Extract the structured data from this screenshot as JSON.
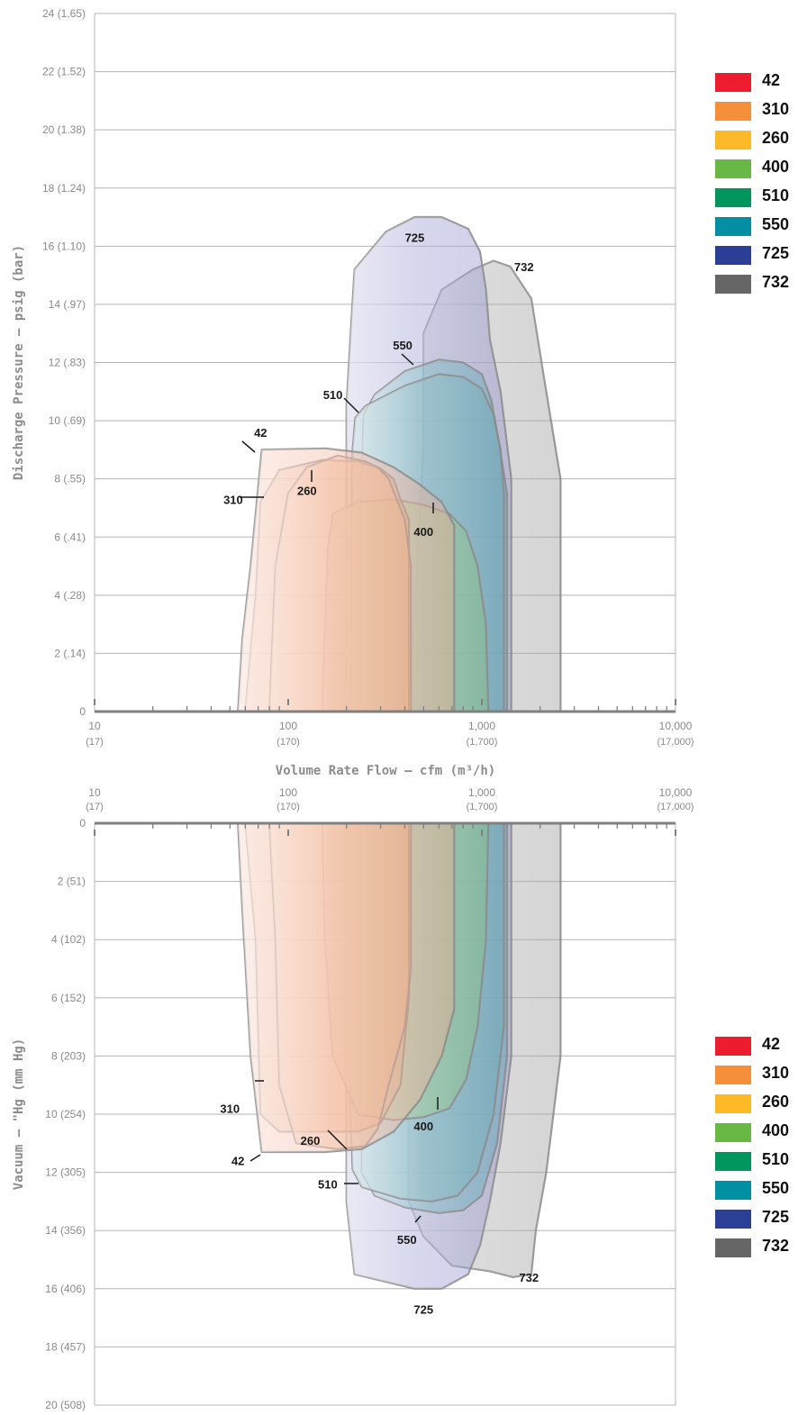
{
  "chart_data": [
    {
      "type": "area",
      "panel": "pressure",
      "ylabel": "Discharge Pressure – psig (bar)",
      "xlabel": "Volume Rate Flow – cfm (m³/h)",
      "xscale": "log",
      "xlim": [
        10,
        10000
      ],
      "ylim": [
        0,
        24
      ],
      "x_ticks": [
        {
          "value": 10,
          "label": "10",
          "sublabel": "(17)"
        },
        {
          "value": 100,
          "label": "100",
          "sublabel": "(170)"
        },
        {
          "value": 1000,
          "label": "1,000",
          "sublabel": "(1,700)"
        },
        {
          "value": 10000,
          "label": "10,000",
          "sublabel": "(17,000)"
        }
      ],
      "y_ticks": [
        {
          "value": 0,
          "label": "0"
        },
        {
          "value": 2,
          "label": "2 (.14)"
        },
        {
          "value": 4,
          "label": "4 (.28)"
        },
        {
          "value": 6,
          "label": "6 (.41)"
        },
        {
          "value": 8,
          "label": "8 (.55)"
        },
        {
          "value": 10,
          "label": "10 (.69)"
        },
        {
          "value": 12,
          "label": "12 (.83)"
        },
        {
          "value": 14,
          "label": "14 (.97)"
        },
        {
          "value": 16,
          "label": "16 (1.10)"
        },
        {
          "value": 18,
          "label": "18 (1.24)"
        },
        {
          "value": 20,
          "label": "20 (1.38)"
        },
        {
          "value": 22,
          "label": "22 (1.52)"
        },
        {
          "value": 24,
          "label": "24 (1.65)"
        }
      ],
      "grid": true,
      "series": [
        {
          "name": "732",
          "color": "#9a9a9a",
          "points": [
            [
              420,
              0
            ],
            [
              500,
              9
            ],
            [
              500,
              13
            ],
            [
              620,
              14.5
            ],
            [
              900,
              15.2
            ],
            [
              1150,
              15.5
            ],
            [
              1400,
              15.3
            ],
            [
              1800,
              14.2
            ],
            [
              2150,
              11
            ],
            [
              2550,
              8
            ],
            [
              2550,
              0
            ]
          ]
        },
        {
          "name": "725",
          "color": "#8d8cce",
          "points": [
            [
              200,
              0
            ],
            [
              200,
              8.8
            ],
            [
              200,
              10.5
            ],
            [
              210,
              13
            ],
            [
              220,
              15.2
            ],
            [
              320,
              16.5
            ],
            [
              450,
              17
            ],
            [
              620,
              17
            ],
            [
              850,
              16.6
            ],
            [
              980,
              15.8
            ],
            [
              1050,
              14.5
            ],
            [
              1100,
              12.8
            ],
            [
              1250,
              11
            ],
            [
              1420,
              8
            ],
            [
              1420,
              0
            ]
          ]
        },
        {
          "name": "550",
          "color": "#4f9fad",
          "points": [
            [
              240,
              0
            ],
            [
              240,
              8
            ],
            [
              245,
              10.2
            ],
            [
              280,
              10.9
            ],
            [
              400,
              11.7
            ],
            [
              600,
              12.1
            ],
            [
              800,
              12
            ],
            [
              1000,
              11.6
            ],
            [
              1120,
              10.7
            ],
            [
              1220,
              9.3
            ],
            [
              1350,
              7.5
            ],
            [
              1350,
              0
            ]
          ]
        },
        {
          "name": "510",
          "color": "#6aa6b1",
          "points": [
            [
              210,
              0
            ],
            [
              215,
              9
            ],
            [
              222,
              10.1
            ],
            [
              250,
              10.5
            ],
            [
              400,
              11.2
            ],
            [
              600,
              11.6
            ],
            [
              800,
              11.5
            ],
            [
              1000,
              11.1
            ],
            [
              1150,
              10.2
            ],
            [
              1250,
              9
            ],
            [
              1300,
              7.5
            ],
            [
              1300,
              0
            ]
          ]
        },
        {
          "name": "400",
          "color": "#8ac07a",
          "points": [
            [
              150,
              0
            ],
            [
              160,
              5.5
            ],
            [
              170,
              6.8
            ],
            [
              230,
              7.2
            ],
            [
              350,
              7.3
            ],
            [
              500,
              7.1
            ],
            [
              680,
              6.8
            ],
            [
              830,
              6.2
            ],
            [
              950,
              5
            ],
            [
              1050,
              3
            ],
            [
              1080,
              0
            ]
          ]
        },
        {
          "name": "310",
          "color": "#e9a176",
          "points": [
            [
              60,
              0
            ],
            [
              68,
              4
            ],
            [
              72,
              7.2
            ],
            [
              90,
              8.3
            ],
            [
              150,
              8.65
            ],
            [
              230,
              8.6
            ],
            [
              300,
              8.35
            ],
            [
              350,
              8
            ],
            [
              380,
              7.3
            ],
            [
              420,
              6.6
            ],
            [
              420,
              0
            ]
          ]
        },
        {
          "name": "260",
          "color": "#eeb07e",
          "points": [
            [
              80,
              0
            ],
            [
              86,
              5
            ],
            [
              100,
              7.5
            ],
            [
              125,
              8.4
            ],
            [
              180,
              8.8
            ],
            [
              250,
              8.6
            ],
            [
              290,
              8.4
            ],
            [
              330,
              8
            ],
            [
              400,
              6.6
            ],
            [
              430,
              5
            ],
            [
              430,
              0
            ]
          ]
        },
        {
          "name": "42",
          "color": "#f3a98f",
          "points": [
            [
              55,
              0
            ],
            [
              58,
              2.5
            ],
            [
              64,
              5
            ],
            [
              73,
              9
            ],
            [
              155,
              9.05
            ],
            [
              240,
              8.9
            ],
            [
              350,
              8.4
            ],
            [
              480,
              7.8
            ],
            [
              620,
              7.2
            ],
            [
              720,
              6.4
            ],
            [
              720,
              0
            ]
          ]
        }
      ],
      "annotations": [
        {
          "text": "42",
          "x": 72,
          "y": 9.6
        },
        {
          "text": "310",
          "x": 52,
          "y": 7.3
        },
        {
          "text": "260",
          "x": 125,
          "y": 7.6
        },
        {
          "text": "400",
          "x": 500,
          "y": 6.2
        },
        {
          "text": "510",
          "x": 170,
          "y": 10.9
        },
        {
          "text": "550",
          "x": 390,
          "y": 12.6
        },
        {
          "text": "725",
          "x": 450,
          "y": 16.3
        },
        {
          "text": "732",
          "x": 1650,
          "y": 15.3
        }
      ]
    },
    {
      "type": "area",
      "panel": "vacuum",
      "ylabel": "Vacuum – \"Hg (mm Hg)",
      "xscale": "log",
      "xlim": [
        10,
        10000
      ],
      "ylim": [
        0,
        20
      ],
      "x_ticks": [
        {
          "value": 10,
          "label": "10",
          "sublabel": "(17)"
        },
        {
          "value": 100,
          "label": "100",
          "sublabel": "(170)"
        },
        {
          "value": 1000,
          "label": "1,000",
          "sublabel": "(1,700)"
        },
        {
          "value": 10000,
          "label": "10,000",
          "sublabel": "(17,000)"
        }
      ],
      "y_ticks": [
        {
          "value": 0,
          "label": "0"
        },
        {
          "value": 2,
          "label": "2 (51)"
        },
        {
          "value": 4,
          "label": "4 (102)"
        },
        {
          "value": 6,
          "label": "6 (152)"
        },
        {
          "value": 8,
          "label": "8 (203)"
        },
        {
          "value": 10,
          "label": "10 (254)"
        },
        {
          "value": 12,
          "label": "12 (305)"
        },
        {
          "value": 14,
          "label": "14 (356)"
        },
        {
          "value": 16,
          "label": "16 (406)"
        },
        {
          "value": 18,
          "label": "18 (457)"
        },
        {
          "value": 20,
          "label": "20 (508)"
        }
      ],
      "grid": true,
      "series": [
        {
          "name": "732",
          "color": "#9a9a9a",
          "points": [
            [
              420,
              0
            ],
            [
              2550,
              0
            ],
            [
              2550,
              8
            ],
            [
              2150,
              12
            ],
            [
              1900,
              14
            ],
            [
              1800,
              15.5
            ],
            [
              1450,
              15.6
            ],
            [
              1100,
              15.4
            ],
            [
              700,
              15.2
            ],
            [
              500,
              14.2
            ],
            [
              420,
              13
            ]
          ]
        },
        {
          "name": "725",
          "color": "#8d8cce",
          "points": [
            [
              200,
              0
            ],
            [
              1420,
              0
            ],
            [
              1420,
              8
            ],
            [
              1250,
              11
            ],
            [
              1100,
              13
            ],
            [
              980,
              14.5
            ],
            [
              850,
              15.5
            ],
            [
              620,
              16
            ],
            [
              450,
              16
            ],
            [
              220,
              15.5
            ],
            [
              200,
              13
            ]
          ]
        },
        {
          "name": "550",
          "color": "#4f9fad",
          "points": [
            [
              240,
              0
            ],
            [
              1350,
              0
            ],
            [
              1350,
              8
            ],
            [
              1200,
              11
            ],
            [
              1000,
              12.8
            ],
            [
              800,
              13.3
            ],
            [
              600,
              13.4
            ],
            [
              400,
              13.2
            ],
            [
              280,
              12.8
            ],
            [
              240,
              12
            ]
          ]
        },
        {
          "name": "510",
          "color": "#6aa6b1",
          "points": [
            [
              210,
              0
            ],
            [
              1300,
              0
            ],
            [
              1300,
              7
            ],
            [
              1150,
              10
            ],
            [
              950,
              12
            ],
            [
              750,
              12.8
            ],
            [
              550,
              13
            ],
            [
              380,
              12.9
            ],
            [
              240,
              12.5
            ],
            [
              215,
              11.9
            ],
            [
              210,
              10
            ]
          ]
        },
        {
          "name": "400",
          "color": "#8ac07a",
          "points": [
            [
              150,
              0
            ],
            [
              1080,
              0
            ],
            [
              1050,
              4
            ],
            [
              950,
              7
            ],
            [
              830,
              8.8
            ],
            [
              680,
              9.8
            ],
            [
              500,
              10.1
            ],
            [
              350,
              10.2
            ],
            [
              230,
              10
            ],
            [
              170,
              8
            ],
            [
              155,
              4
            ]
          ]
        },
        {
          "name": "310",
          "color": "#e9a176",
          "points": [
            [
              60,
              0
            ],
            [
              420,
              0
            ],
            [
              420,
              6
            ],
            [
              380,
              9
            ],
            [
              300,
              10.3
            ],
            [
              230,
              10.6
            ],
            [
              150,
              10.6
            ],
            [
              90,
              10.6
            ],
            [
              72,
              10
            ],
            [
              68,
              4
            ]
          ]
        },
        {
          "name": "260",
          "color": "#eeb07e",
          "points": [
            [
              80,
              0
            ],
            [
              430,
              0
            ],
            [
              430,
              5
            ],
            [
              400,
              7
            ],
            [
              330,
              9
            ],
            [
              290,
              10.5
            ],
            [
              250,
              11.1
            ],
            [
              180,
              11.2
            ],
            [
              110,
              11
            ],
            [
              90,
              9
            ],
            [
              86,
              4
            ]
          ]
        },
        {
          "name": "42",
          "color": "#f3a98f",
          "points": [
            [
              55,
              0
            ],
            [
              720,
              0
            ],
            [
              720,
              6.4
            ],
            [
              620,
              8
            ],
            [
              480,
              9.5
            ],
            [
              350,
              10.6
            ],
            [
              240,
              11.2
            ],
            [
              155,
              11.3
            ],
            [
              73,
              11.3
            ],
            [
              64,
              8
            ],
            [
              58,
              3
            ]
          ]
        }
      ],
      "annotations": [
        {
          "text": "42",
          "x": 55,
          "y": 11.6
        },
        {
          "text": "310",
          "x": 50,
          "y": 9.8
        },
        {
          "text": "260",
          "x": 130,
          "y": 10.9
        },
        {
          "text": "400",
          "x": 500,
          "y": 10.4
        },
        {
          "text": "510",
          "x": 160,
          "y": 12.4
        },
        {
          "text": "550",
          "x": 410,
          "y": 14.3
        },
        {
          "text": "725",
          "x": 500,
          "y": 16.7
        },
        {
          "text": "732",
          "x": 1750,
          "y": 15.6
        }
      ]
    }
  ],
  "legend_items": [
    {
      "label": "42",
      "color": "#ed1c2e"
    },
    {
      "label": "310",
      "color": "#f58f3a"
    },
    {
      "label": "260",
      "color": "#fdb927"
    },
    {
      "label": "400",
      "color": "#67b845"
    },
    {
      "label": "510",
      "color": "#00965e"
    },
    {
      "label": "550",
      "color": "#008fa3"
    },
    {
      "label": "725",
      "color": "#2b3f97"
    },
    {
      "label": "732",
      "color": "#666666"
    }
  ]
}
